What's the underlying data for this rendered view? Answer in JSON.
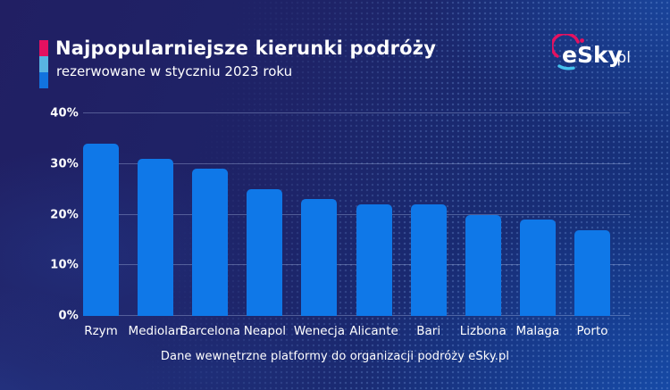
{
  "header": {
    "title": "Najpopularniejsze kierunki podróży",
    "subtitle": "rezerwowane w styczniu 2023 roku"
  },
  "logo": {
    "text": "eSky",
    "suffix": ".pl"
  },
  "footer": {
    "source": "Dane wewnętrzne platformy do organizacji podróży eSky.pl"
  },
  "colors": {
    "bar": "#0f78e8",
    "accent_pink": "#e51160",
    "accent_lightblue": "#58b4e2",
    "accent_blue": "#1273de",
    "background_dark": "#1e2164",
    "background_light": "#153683",
    "gridline": "rgba(190,210,245,0.33)",
    "text": "#ffffff"
  },
  "chart_data": {
    "type": "bar",
    "title": "Najpopularniejsze kierunki podróży rezerwowane w styczniu 2023 roku",
    "categories": [
      "Rzym",
      "Mediolan",
      "Barcelona",
      "Neapol",
      "Wenecja",
      "Alicante",
      "Bari",
      "Lizbona",
      "Malaga",
      "Porto"
    ],
    "values": [
      34,
      31,
      29,
      25,
      23,
      22,
      22,
      20,
      19,
      17
    ],
    "unit": "%",
    "xlabel": "",
    "ylabel": "",
    "ylim": [
      0,
      40
    ],
    "yticks": [
      "0%",
      "10%",
      "20%",
      "30%",
      "40%"
    ],
    "grid": true,
    "legend": false,
    "bar_color": "#0f78e8"
  }
}
